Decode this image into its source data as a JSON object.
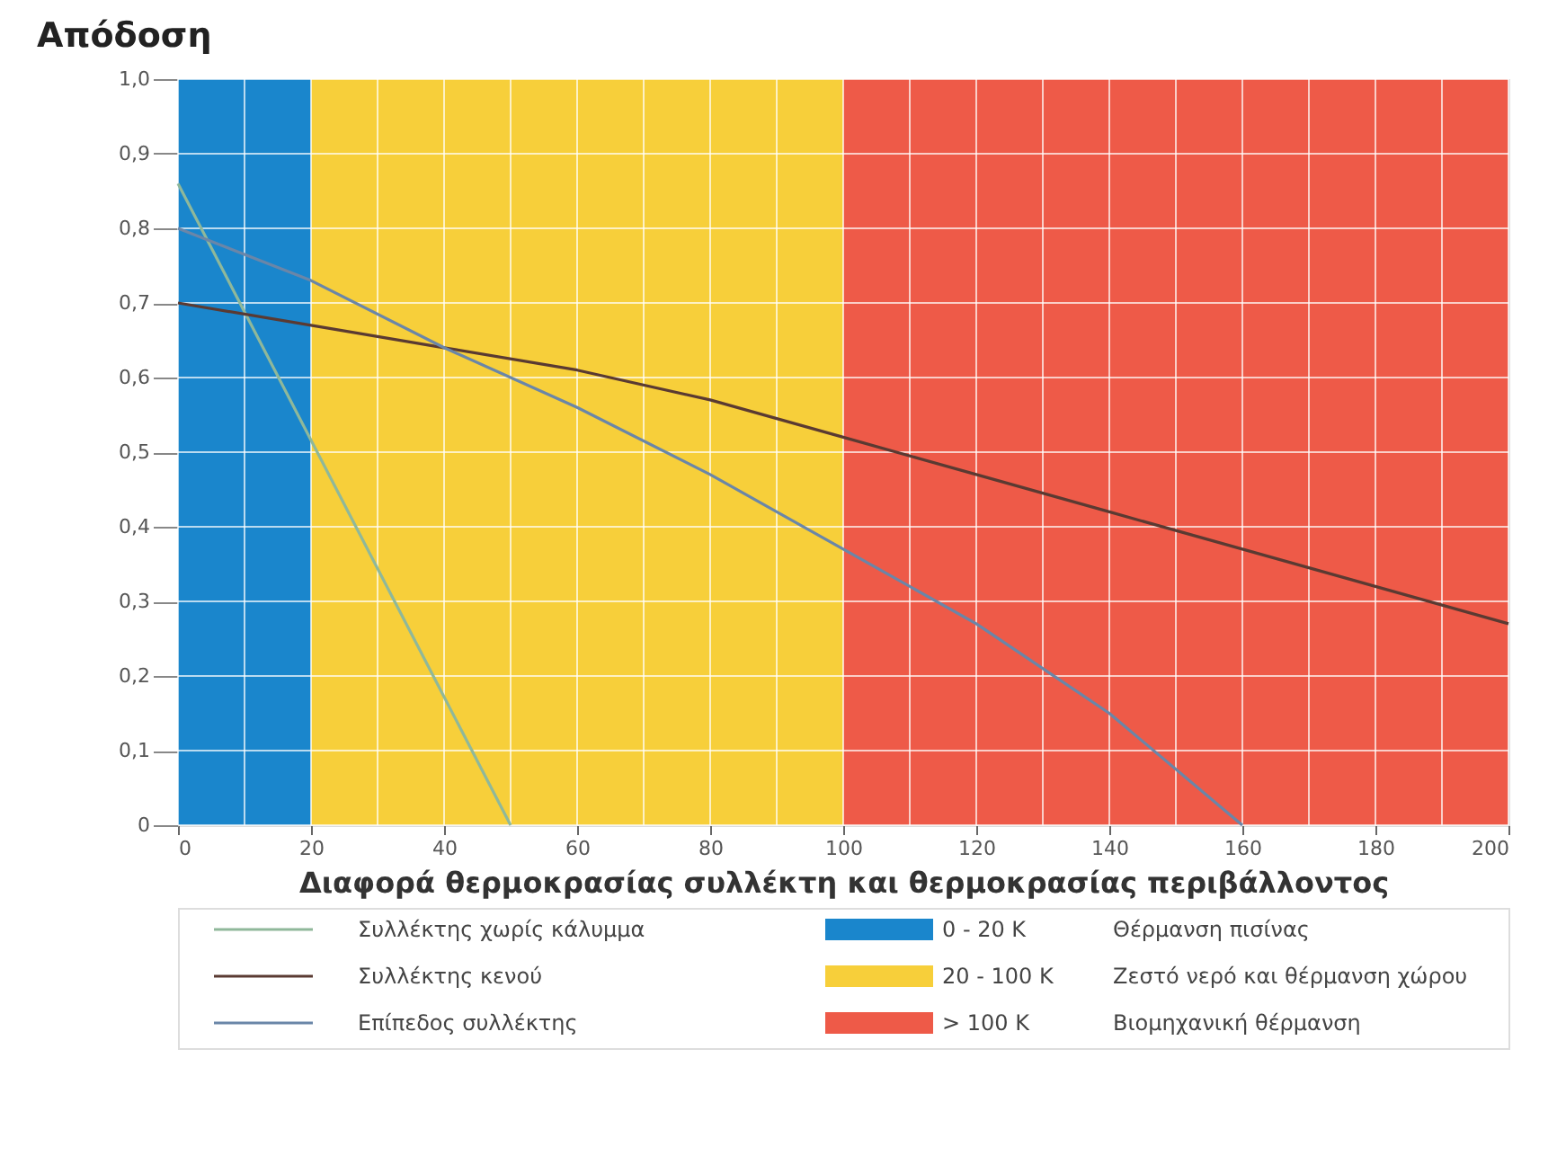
{
  "chart_data": {
    "type": "line",
    "ylabel": "Απόδοση",
    "xlabel": "Διαφορά θερμοκρασίας συλλέκτη και θερμοκρασίας περιβάλλοντος",
    "series": [
      {
        "name": "Συλλέκτης χωρίς κάλυμμα",
        "color": "#8fb89a",
        "x": [
          0,
          50
        ],
        "values": [
          0.86,
          0
        ]
      },
      {
        "name": "Συλλέκτης κενού",
        "color": "#5a3a32",
        "x": [
          0,
          20,
          40,
          60,
          80,
          100,
          120,
          140,
          160,
          180,
          200
        ],
        "values": [
          0.7,
          0.67,
          0.64,
          0.61,
          0.57,
          0.52,
          0.47,
          0.42,
          0.37,
          0.32,
          0.27
        ]
      },
      {
        "name": "Επίπεδος συλλέκτης",
        "color": "#6a86a8",
        "x": [
          0,
          20,
          40,
          60,
          80,
          100,
          120,
          140,
          160
        ],
        "values": [
          0.8,
          0.73,
          0.64,
          0.56,
          0.47,
          0.37,
          0.27,
          0.15,
          0
        ]
      }
    ],
    "bands": [
      {
        "axis": "x",
        "from": 0,
        "to": 20,
        "label": "0 - 20 K",
        "color": "#1a86cc"
      },
      {
        "axis": "x",
        "from": 20,
        "to": 100,
        "label": "20 - 100 K",
        "color": "#f7cf3a"
      },
      {
        "axis": "x",
        "from": 100,
        "to": 200,
        "label": "> 100 K",
        "color": "#ee5a48"
      }
    ],
    "annotations": [
      "Θέρμανση πισίνας",
      "Ζεστό νερό και θέρμανση χώρου",
      "Βιομηχανική θέρμανση"
    ],
    "xlim": [
      0,
      200
    ],
    "xticks": [
      0,
      {
        "value": 10,
        "label": null
      },
      20,
      {
        "value": 30,
        "label": null
      },
      40,
      {
        "value": 50,
        "label": null
      },
      60,
      {
        "value": 70,
        "label": null
      },
      80,
      {
        "value": 90,
        "label": null
      },
      100,
      {
        "value": 110,
        "label": null
      },
      120,
      {
        "value": 130,
        "label": null
      },
      140,
      {
        "value": 150,
        "label": null
      },
      160,
      {
        "value": 170,
        "label": null
      },
      180,
      {
        "value": 190,
        "label": null
      },
      200
    ],
    "ylim": [
      0,
      1
    ],
    "yticks": [
      0,
      {
        "value": 0.1,
        "label": "0,1"
      },
      {
        "value": 0.2,
        "label": "0,2"
      },
      {
        "value": 0.3,
        "label": "0,3"
      },
      {
        "value": 0.4,
        "label": "0,4"
      },
      {
        "value": 0.5,
        "label": "0,5"
      },
      {
        "value": 0.6,
        "label": "0,6"
      },
      {
        "value": 0.7,
        "label": "0,7"
      },
      {
        "value": 0.8,
        "label": "0,8"
      },
      {
        "value": 0.9,
        "label": "0,9"
      },
      {
        "value": 1,
        "label": "1,0"
      }
    ],
    "grid": true,
    "legend": "bottom",
    "line_style": "solid",
    "marker": "none"
  }
}
